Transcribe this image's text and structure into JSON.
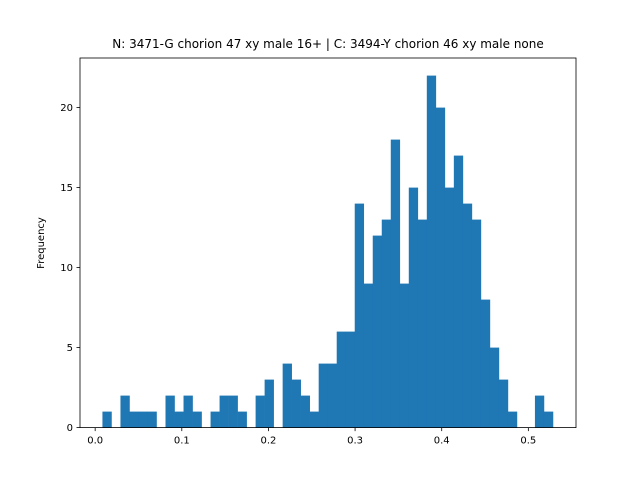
{
  "chart_data": {
    "type": "bar",
    "title": "N: 3471-G chorion 47 xy male 16+ | C: 3494-Y chorion 46 xy male none",
    "xlabel": "",
    "ylabel": "Frequency",
    "xlim": [
      -0.0175,
      0.555
    ],
    "ylim": [
      0,
      23.1
    ],
    "xticks": [
      "0.0",
      "0.1",
      "0.2",
      "0.3",
      "0.4",
      "0.5"
    ],
    "yticks": [
      "0",
      "5",
      "10",
      "15",
      "20"
    ],
    "grid": false,
    "color": "#1f77b4",
    "bin_start": 0.0084,
    "bin_width": 0.0104,
    "counts": [
      1,
      0,
      2,
      1,
      1,
      1,
      0,
      2,
      1,
      2,
      1,
      0,
      1,
      2,
      2,
      1,
      0,
      2,
      3,
      0,
      4,
      3,
      2,
      1,
      4,
      4,
      6,
      6,
      14,
      9,
      12,
      13,
      18,
      9,
      15,
      13,
      22,
      20,
      15,
      17,
      14,
      13,
      8,
      5,
      3,
      1,
      0,
      0,
      2,
      1
    ]
  }
}
